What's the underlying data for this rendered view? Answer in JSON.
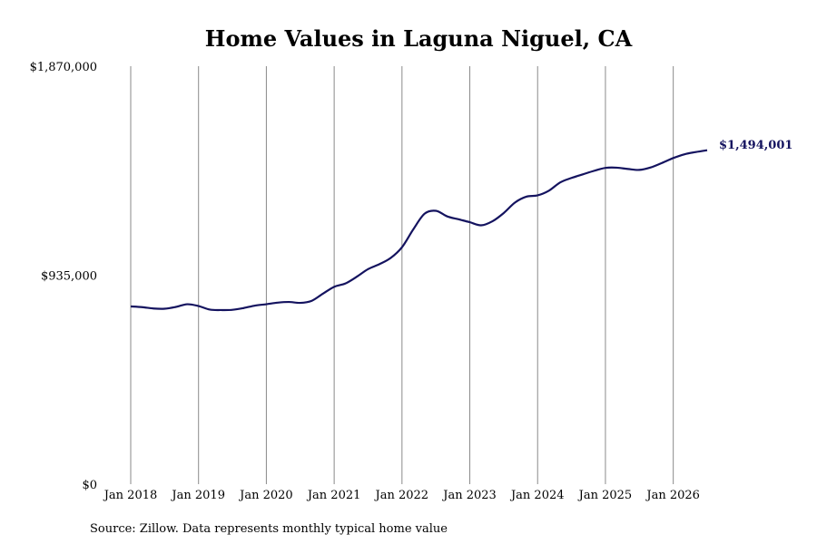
{
  "chart_data": {
    "type": "line",
    "title": "Home Values in Laguna Niguel, CA",
    "source": "Source: Zillow. Data represents monthly typical home value",
    "ylim": [
      0,
      1870000
    ],
    "yticks": [
      {
        "value": 0,
        "label": "$0"
      },
      {
        "value": 935000,
        "label": "$935,000"
      },
      {
        "value": 1870000,
        "label": "$1,870,000"
      }
    ],
    "xlim": [
      "2018-01",
      "2026-07"
    ],
    "xticks": [
      {
        "value": "2018-01",
        "label": "Jan 2018"
      },
      {
        "value": "2019-01",
        "label": "Jan 2019"
      },
      {
        "value": "2020-01",
        "label": "Jan 2020"
      },
      {
        "value": "2021-01",
        "label": "Jan 2021"
      },
      {
        "value": "2022-01",
        "label": "Jan 2022"
      },
      {
        "value": "2023-01",
        "label": "Jan 2023"
      },
      {
        "value": "2024-01",
        "label": "Jan 2024"
      },
      {
        "value": "2025-01",
        "label": "Jan 2025"
      },
      {
        "value": "2026-01",
        "label": "Jan 2026"
      }
    ],
    "grid": "vertical",
    "line_color": "#14135f",
    "end_label": "$1,494,001",
    "series": [
      {
        "values": [
          [
            "2018-01",
            795000
          ],
          [
            "2018-03",
            792000
          ],
          [
            "2018-05",
            786000
          ],
          [
            "2018-07",
            785000
          ],
          [
            "2018-09",
            793000
          ],
          [
            "2018-11",
            805000
          ],
          [
            "2019-01",
            797000
          ],
          [
            "2019-03",
            781000
          ],
          [
            "2019-05",
            779000
          ],
          [
            "2019-07",
            780000
          ],
          [
            "2019-09",
            788000
          ],
          [
            "2019-11",
            799000
          ],
          [
            "2020-01",
            805000
          ],
          [
            "2020-03",
            812000
          ],
          [
            "2020-05",
            815000
          ],
          [
            "2020-07",
            811000
          ],
          [
            "2020-09",
            820000
          ],
          [
            "2020-11",
            852000
          ],
          [
            "2021-01",
            883000
          ],
          [
            "2021-03",
            898000
          ],
          [
            "2021-05",
            928000
          ],
          [
            "2021-07",
            962000
          ],
          [
            "2021-09",
            984000
          ],
          [
            "2021-11",
            1012000
          ],
          [
            "2022-01",
            1060000
          ],
          [
            "2022-03",
            1140000
          ],
          [
            "2022-05",
            1210000
          ],
          [
            "2022-07",
            1223000
          ],
          [
            "2022-09",
            1198000
          ],
          [
            "2022-11",
            1185000
          ],
          [
            "2023-01",
            1172000
          ],
          [
            "2023-03",
            1158000
          ],
          [
            "2023-05",
            1176000
          ],
          [
            "2023-07",
            1213000
          ],
          [
            "2023-09",
            1260000
          ],
          [
            "2023-11",
            1286000
          ],
          [
            "2024-01",
            1292000
          ],
          [
            "2024-03",
            1313000
          ],
          [
            "2024-05",
            1350000
          ],
          [
            "2024-07",
            1370000
          ],
          [
            "2024-09",
            1386000
          ],
          [
            "2024-11",
            1402000
          ],
          [
            "2025-01",
            1415000
          ],
          [
            "2025-03",
            1416000
          ],
          [
            "2025-05",
            1410000
          ],
          [
            "2025-07",
            1406000
          ],
          [
            "2025-09",
            1417000
          ],
          [
            "2025-11",
            1437000
          ],
          [
            "2026-01",
            1459000
          ],
          [
            "2026-03",
            1476000
          ],
          [
            "2026-05",
            1486000
          ],
          [
            "2026-07",
            1494001
          ]
        ]
      }
    ]
  }
}
